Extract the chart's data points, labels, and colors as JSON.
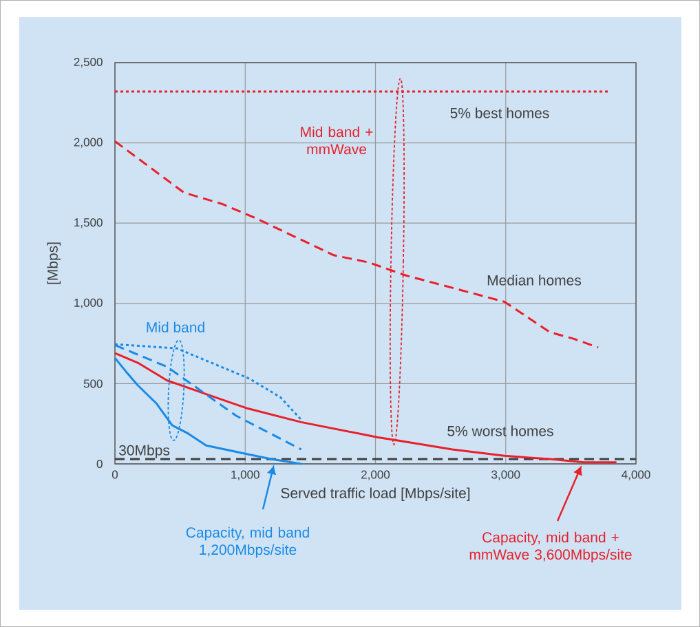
{
  "chart_data": {
    "type": "line",
    "xlabel": "Served traffic load [Mbps/site]",
    "ylabel": "[Mbps]",
    "xlim": [
      0,
      4000
    ],
    "ylim": [
      0,
      2500
    ],
    "xticks": [
      0,
      {
        "value": 1000,
        "label": "1,000"
      },
      {
        "value": 2000,
        "label": "2,000"
      },
      {
        "value": 3000,
        "label": "3,000"
      },
      {
        "value": 4000,
        "label": "4,000"
      }
    ],
    "yticks": [
      0,
      500,
      {
        "value": 1000,
        "label": "1,000"
      },
      {
        "value": 1500,
        "label": "1,500"
      },
      {
        "value": 2000,
        "label": "2,000"
      },
      {
        "value": 2500,
        "label": "2,500"
      }
    ],
    "grid": true,
    "series": [
      {
        "name": "Mid band + mmWave",
        "color": "#e8202a",
        "line_style": "dotted",
        "x": [
          0,
          3800
        ],
        "values": [
          2320,
          2320
        ]
      },
      {
        "color": "#e8202a",
        "line_style": "dashed",
        "x": [
          0,
          530,
          820,
          1070,
          1680,
          1950,
          2230,
          2990,
          3340,
          3520,
          3710
        ],
        "values": [
          2010,
          1690,
          1620,
          1535,
          1300,
          1255,
          1175,
          1010,
          820,
          780,
          725
        ]
      },
      {
        "color": "#e8202a",
        "line_style": "solid",
        "x": [
          0,
          175,
          400,
          700,
          1020,
          1430,
          2020,
          2180,
          2590,
          2990,
          3340,
          3600,
          3850
        ],
        "values": [
          690,
          630,
          520,
          435,
          345,
          260,
          165,
          145,
          90,
          50,
          30,
          10,
          10
        ]
      },
      {
        "name": "Mid band",
        "color": "#1a8ae6",
        "line_style": "dotted",
        "x": [
          0,
          475,
          1035,
          1270,
          1430
        ],
        "values": [
          745,
          720,
          530,
          415,
          275
        ]
      },
      {
        "color": "#1a8ae6",
        "line_style": "dashed",
        "x": [
          0,
          400,
          930,
          1430
        ],
        "values": [
          740,
          605,
          300,
          90
        ]
      },
      {
        "color": "#1a8ae6",
        "line_style": "solid",
        "x": [
          0,
          85,
          175,
          320,
          440,
          560,
          700,
          845,
          1020,
          1200,
          1430
        ],
        "values": [
          660,
          575,
          490,
          375,
          240,
          190,
          115,
          90,
          60,
          30,
          0
        ]
      }
    ],
    "ref_lines": [
      {
        "axis": "y",
        "value": 30,
        "label": "30Mbps",
        "color": "#404040",
        "line_style": "dashed"
      }
    ],
    "annotations": [
      "5% best homes",
      "Median homes",
      "5% worst homes",
      "Capacity, mid band 1,200Mbps/site",
      "Capacity, mid band + mmWave 3,600Mbps/site"
    ]
  }
}
